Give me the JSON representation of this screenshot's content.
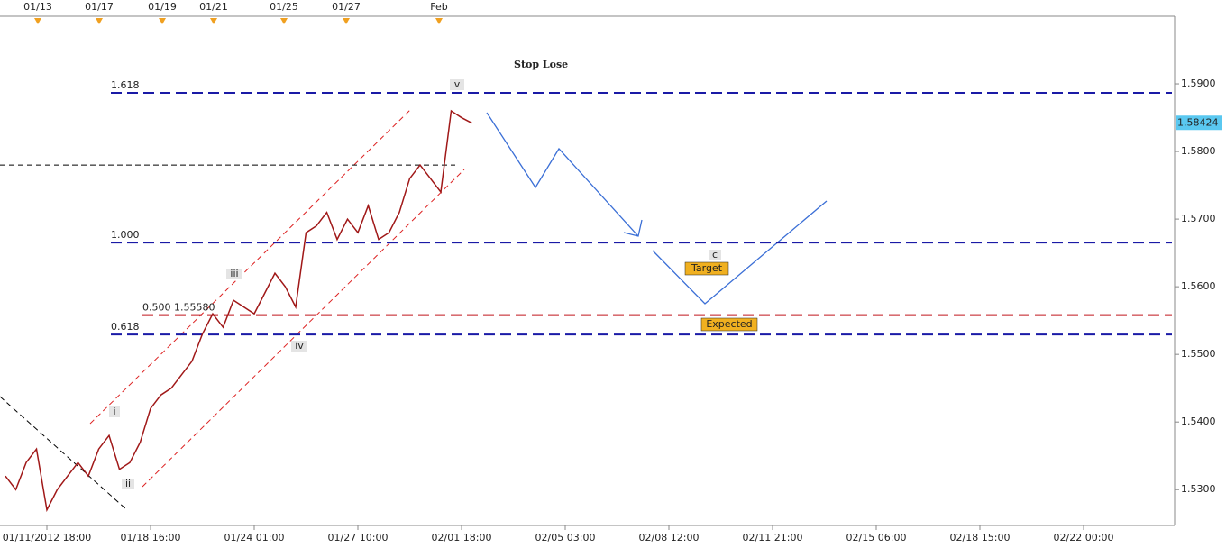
{
  "chart_data": {
    "type": "line",
    "categories": [
      null,
      null,
      null,
      null,
      "01/11/2012 18:00",
      null,
      null,
      null,
      null,
      null,
      null,
      null,
      null,
      null,
      "01/18 16:00",
      null,
      null,
      null,
      null,
      null,
      null,
      null,
      null,
      null,
      "01/24 01:00",
      null,
      null,
      null,
      null,
      null,
      null,
      null,
      null,
      null,
      "01/27 10:00",
      null,
      null,
      null,
      null,
      null,
      null,
      null,
      null,
      null,
      "02/01 18:00",
      null,
      null,
      null,
      null,
      null,
      null,
      null,
      null,
      null,
      "02/05 03:00",
      null,
      null,
      null,
      null,
      null,
      null,
      null,
      null,
      null,
      "02/08 12:00",
      null,
      null,
      null,
      null,
      null,
      null,
      null,
      null,
      null,
      "02/11 21:00",
      null,
      null,
      null,
      null,
      null,
      null,
      null,
      null,
      null,
      "02/15 06:00",
      null,
      null,
      null,
      null,
      null,
      null,
      null,
      null,
      null,
      "02/18 15:00",
      null,
      null,
      null,
      null,
      null,
      null,
      null,
      null,
      null,
      "02/22 00:00",
      null,
      null,
      null,
      null,
      null,
      null,
      null
    ],
    "series": [
      {
        "color": "#a01818",
        "values": [
          1.532,
          1.53,
          1.534,
          1.536,
          1.527,
          1.53,
          1.532,
          1.534,
          1.532,
          1.536,
          1.538,
          1.533,
          1.534,
          1.537,
          1.542,
          1.544,
          1.545,
          1.547,
          1.549,
          1.553,
          1.556,
          1.554,
          1.558,
          1.557,
          1.556,
          1.559,
          1.562,
          1.56,
          1.557,
          1.568,
          1.569,
          1.571,
          1.567,
          1.57,
          1.568,
          1.572,
          1.567,
          1.568,
          1.571,
          1.576,
          1.578,
          1.576,
          1.574,
          1.586,
          1.585,
          1.5842,
          null,
          null,
          null,
          null,
          null,
          null,
          null,
          null,
          null,
          null,
          null,
          null,
          null,
          null,
          null,
          null,
          null,
          null,
          null,
          null,
          null,
          null,
          null,
          null,
          null,
          null,
          null,
          null,
          null,
          null,
          null,
          null,
          null,
          null,
          null,
          null,
          null,
          null,
          null,
          null,
          null,
          null,
          null,
          null,
          null,
          null,
          null,
          null,
          null,
          null,
          null,
          null,
          null,
          null,
          null,
          null,
          null,
          null,
          null,
          null,
          null,
          null,
          null,
          null,
          null,
          null
        ]
      }
    ],
    "ylim": [
      1.5247,
      1.6
    ],
    "yticks": [
      {
        "value": 1.53,
        "label": "1.5300"
      },
      {
        "value": 1.54,
        "label": "1.5400"
      },
      {
        "value": 1.55,
        "label": "1.5500"
      },
      {
        "value": 1.56,
        "label": "1.5600"
      },
      {
        "value": 1.57,
        "label": "1.5700"
      },
      {
        "value": 1.58,
        "label": "1.5800"
      },
      {
        "value": 1.59,
        "label": "1.5900"
      }
    ],
    "top_labels": [
      "01/13",
      "01/17",
      "01/19",
      "01/21",
      "01/25",
      "01/27",
      "Feb"
    ],
    "last_price": 1.58424,
    "levels": [
      {
        "label": "1.618",
        "value": 1.58867,
        "color": "#1a1aa6"
      },
      {
        "label": "1.000",
        "value": 1.56653,
        "color": "#1a1aa6"
      },
      {
        "label": "0.618",
        "value": 1.55293,
        "color": "#1a1aa6"
      },
      {
        "label": "0.500 1.55580",
        "value": 1.5558,
        "color": "#c0161c"
      },
      {
        "value": 1.578,
        "color": "#000000"
      }
    ],
    "annotations": [
      "Stop Lose",
      "Target",
      "Expected",
      "i",
      "ii",
      "iii",
      "iv",
      "v",
      "c"
    ]
  }
}
